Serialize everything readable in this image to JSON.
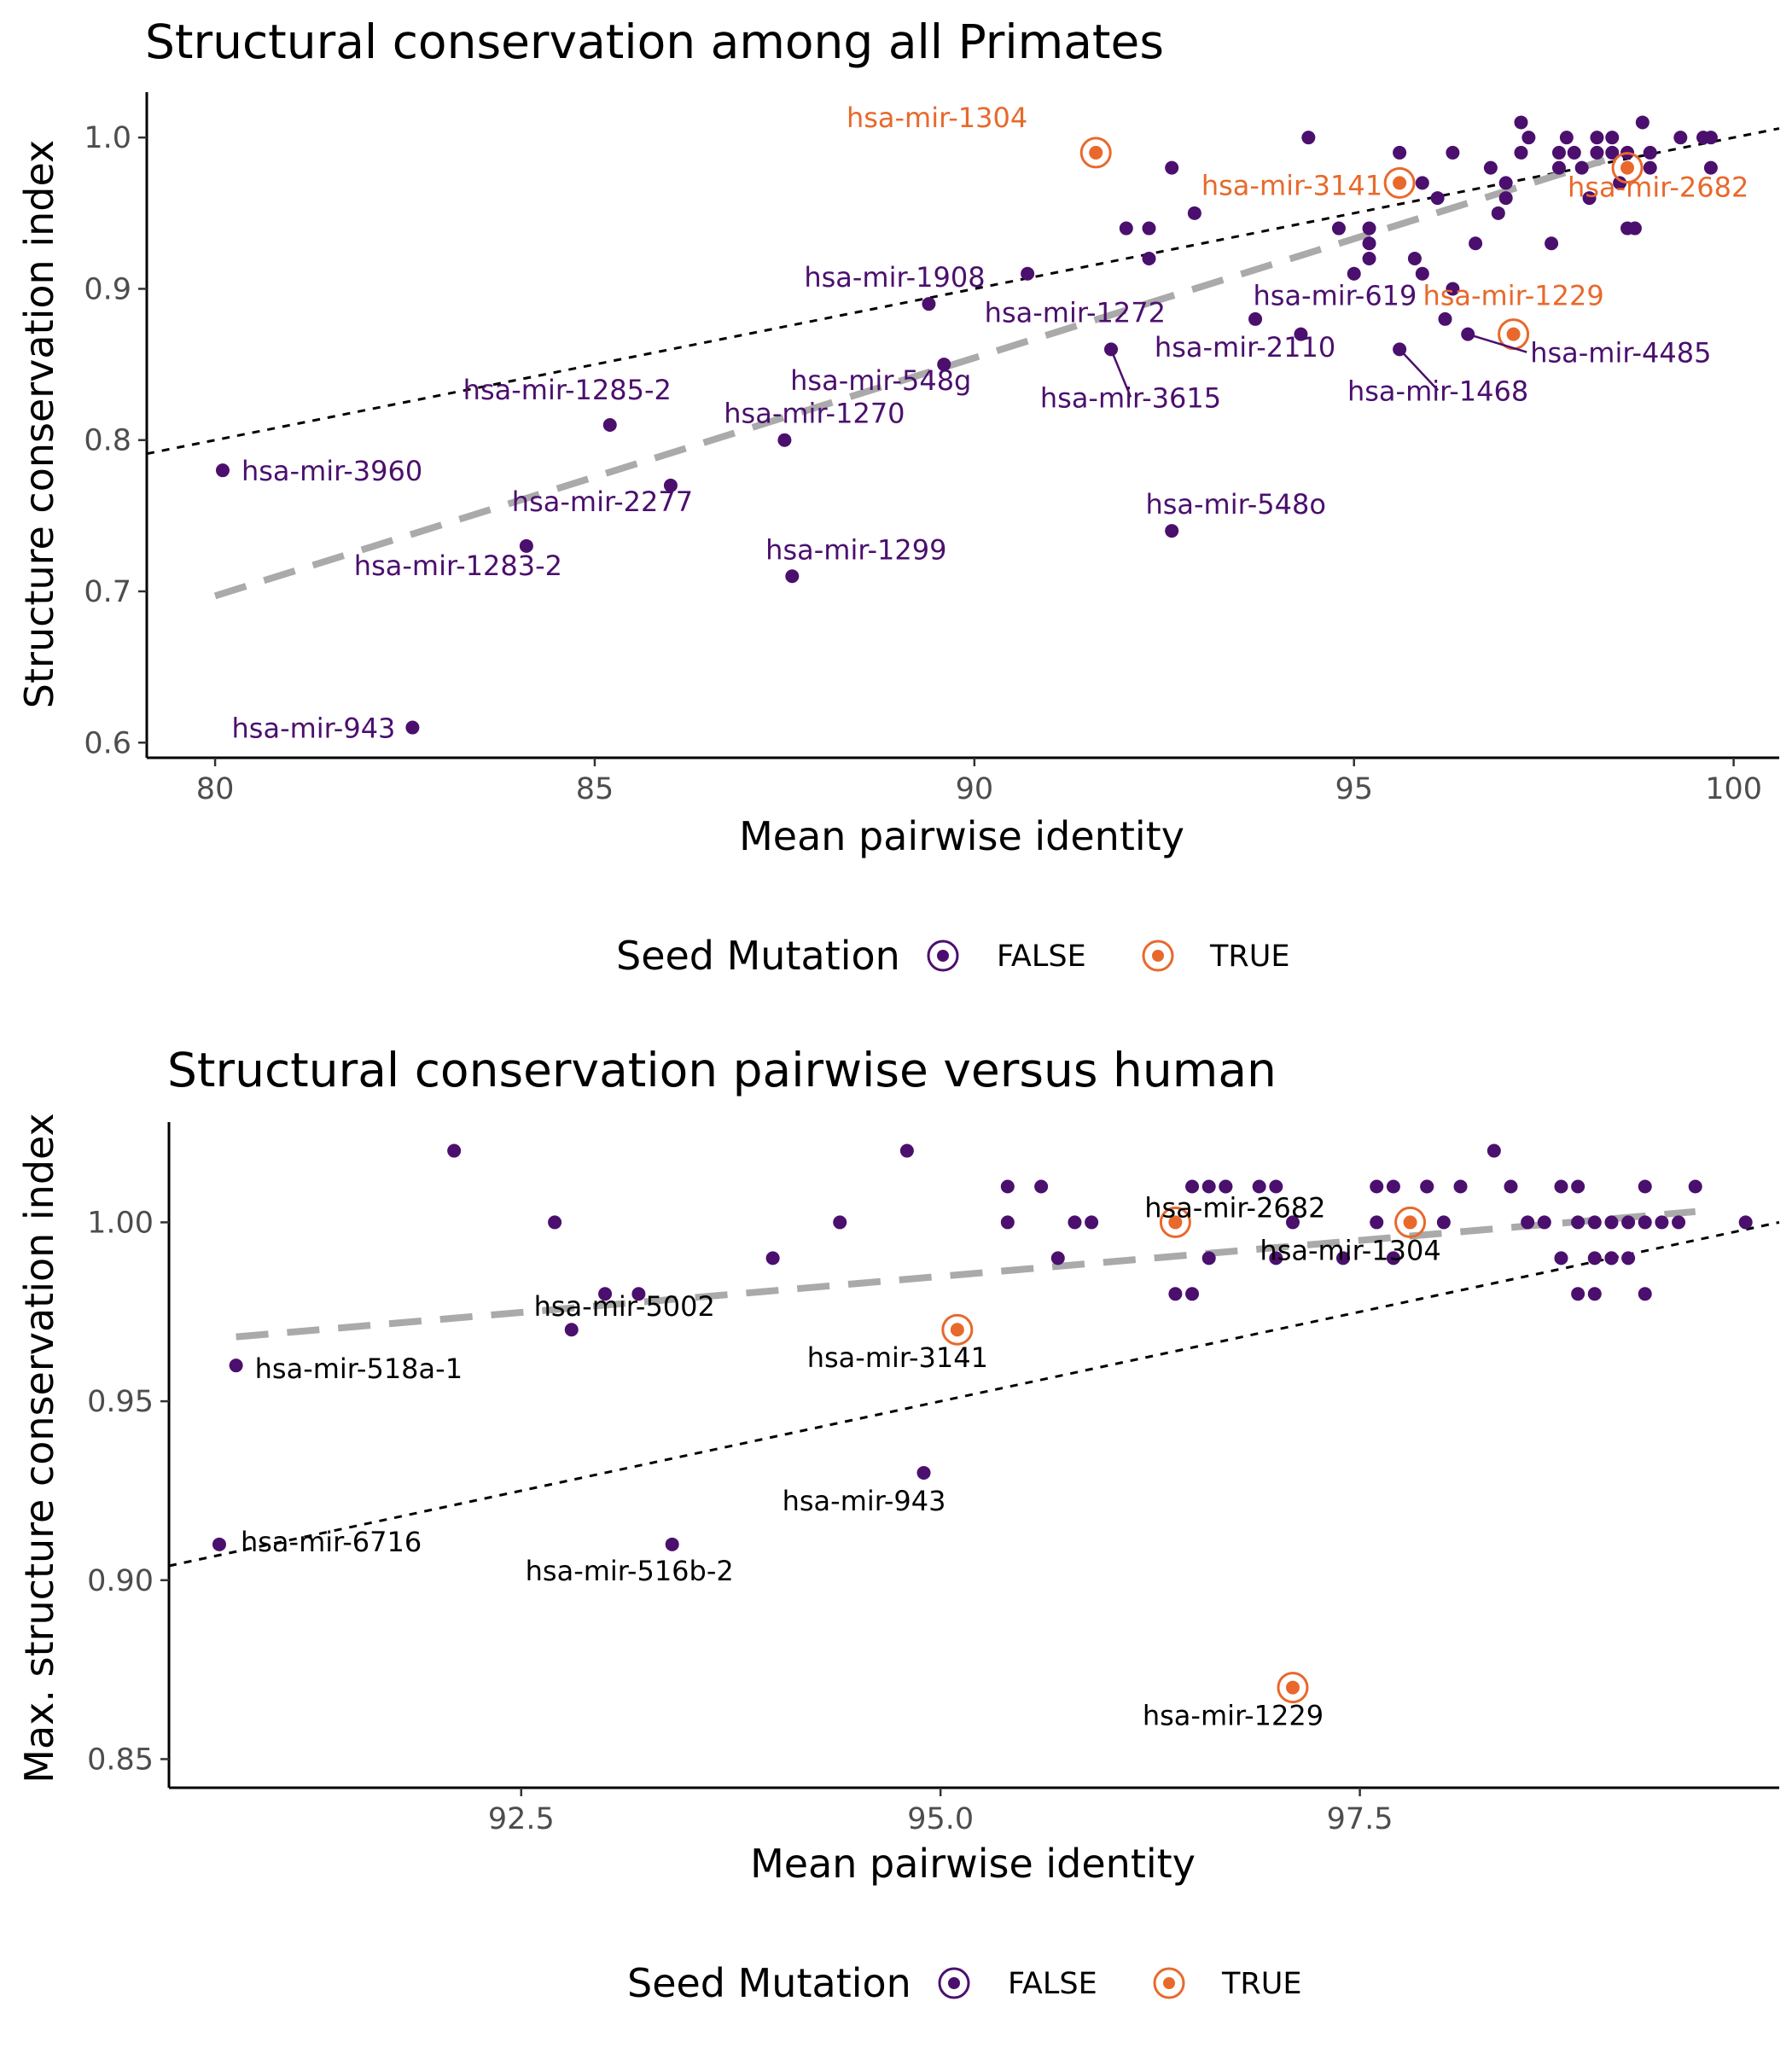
{
  "colors": {
    "false": "#4b0f6e",
    "true": "#e8692b",
    "loess": "#aaaaaa",
    "diag": "#000000",
    "axis": "#000000"
  },
  "chart_data": [
    {
      "type": "scatter",
      "title": "Structural conservation among all Primates",
      "xlabel": "Mean pairwise identity",
      "ylabel": "Structure conservation index",
      "xlim": [
        79.1,
        100.6
      ],
      "ylim": [
        0.59,
        1.03
      ],
      "xticks": [
        80,
        85,
        90,
        95,
        100
      ],
      "xtick_labels": [
        "80",
        "85",
        "90",
        "95",
        "100"
      ],
      "yticks": [
        0.6,
        0.7,
        0.8,
        0.9,
        1.0
      ],
      "ytick_labels": [
        "0.6",
        "0.7",
        "0.8",
        "0.9",
        "1.0"
      ],
      "grid": false,
      "reference_line": {
        "style": "dotted",
        "from": [
          79.1,
          0.791
        ],
        "to": [
          100.6,
          1.006
        ]
      },
      "trend_line": {
        "style": "dashed",
        "from": [
          80.0,
          0.697
        ],
        "to": [
          98.3,
          0.985
        ]
      },
      "legend": {
        "title": "Seed Mutation",
        "position": "bottom",
        "entries": [
          "FALSE",
          "TRUE"
        ]
      },
      "series": [
        {
          "name": "FALSE",
          "points": [
            [
              80.1,
              0.78
            ],
            [
              82.6,
              0.61
            ],
            [
              84.1,
              0.73
            ],
            [
              85.2,
              0.81
            ],
            [
              86.0,
              0.77
            ],
            [
              87.5,
              0.8
            ],
            [
              87.6,
              0.71
            ],
            [
              89.4,
              0.89
            ],
            [
              89.6,
              0.85
            ],
            [
              90.7,
              0.91
            ],
            [
              91.8,
              0.86
            ],
            [
              92.0,
              0.94
            ],
            [
              92.3,
              0.94
            ],
            [
              92.3,
              0.92
            ],
            [
              92.6,
              0.98
            ],
            [
              92.6,
              0.74
            ],
            [
              92.9,
              0.95
            ],
            [
              93.7,
              0.88
            ],
            [
              94.3,
              0.87
            ],
            [
              94.4,
              1.0
            ],
            [
              94.8,
              0.94
            ],
            [
              95.0,
              0.91
            ],
            [
              95.2,
              0.94
            ],
            [
              95.2,
              0.93
            ],
            [
              95.2,
              0.92
            ],
            [
              95.6,
              0.99
            ],
            [
              95.6,
              0.86
            ],
            [
              95.9,
              0.97
            ],
            [
              96.1,
              0.96
            ],
            [
              96.2,
              0.88
            ],
            [
              96.3,
              0.9
            ],
            [
              96.3,
              0.99
            ],
            [
              96.5,
              0.87
            ],
            [
              96.6,
              0.93
            ],
            [
              96.8,
              0.98
            ],
            [
              96.9,
              0.95
            ],
            [
              97.0,
              0.97
            ],
            [
              97.0,
              0.96
            ],
            [
              97.2,
              1.01
            ],
            [
              97.2,
              0.99
            ],
            [
              97.3,
              1.0
            ],
            [
              97.6,
              0.93
            ],
            [
              97.7,
              0.99
            ],
            [
              97.7,
              0.98
            ],
            [
              97.8,
              1.0
            ],
            [
              97.9,
              0.99
            ],
            [
              98.0,
              0.98
            ],
            [
              98.1,
              0.96
            ],
            [
              98.2,
              1.0
            ],
            [
              98.2,
              0.99
            ],
            [
              98.4,
              1.0
            ],
            [
              98.4,
              0.99
            ],
            [
              98.5,
              0.97
            ],
            [
              98.6,
              0.99
            ],
            [
              98.6,
              0.94
            ],
            [
              98.7,
              0.94
            ],
            [
              98.8,
              1.01
            ],
            [
              98.9,
              0.99
            ],
            [
              98.9,
              0.98
            ],
            [
              99.3,
              1.0
            ],
            [
              99.6,
              1.0
            ],
            [
              99.7,
              1.0
            ],
            [
              99.7,
              0.98
            ],
            [
              95.8,
              0.92
            ],
            [
              95.9,
              0.91
            ]
          ]
        },
        {
          "name": "TRUE",
          "points": [
            [
              91.6,
              0.99
            ],
            [
              95.6,
              0.97
            ],
            [
              97.1,
              0.87
            ],
            [
              98.6,
              0.98
            ]
          ]
        }
      ],
      "annotations": [
        {
          "text": "hsa-mir-1304",
          "color": "true",
          "at": [
            91.6,
            0.99
          ],
          "dx": -80,
          "dy": -30,
          "anchor": "end"
        },
        {
          "text": "hsa-mir-3141",
          "color": "true",
          "at": [
            95.6,
            0.97
          ],
          "dx": -20,
          "dy": 14,
          "anchor": "end"
        },
        {
          "text": "hsa-mir-2682",
          "color": "true",
          "at": [
            98.6,
            0.98
          ],
          "dx": -70,
          "dy": 34,
          "anchor": "start"
        },
        {
          "text": "hsa-mir-1229",
          "color": "true",
          "at": [
            97.1,
            0.87
          ],
          "dx": 0,
          "dy": -34,
          "anchor": "middle"
        },
        {
          "text": "hsa-mir-1908",
          "color": "false",
          "at": [
            89.4,
            0.89
          ],
          "dx": -40,
          "dy": -20,
          "anchor": "middle"
        },
        {
          "text": "hsa-mir-1272",
          "color": "false",
          "at": [
            92.0,
            0.94
          ],
          "dx": -60,
          "dy": 110,
          "anchor": "middle"
        },
        {
          "text": "hsa-mir-619",
          "color": "false",
          "at": [
            94.3,
            0.87
          ],
          "dx": 40,
          "dy": -34,
          "anchor": "middle"
        },
        {
          "text": "hsa-mir-2110",
          "color": "false",
          "at": [
            93.7,
            0.88
          ],
          "dx": -12,
          "dy": 44,
          "anchor": "middle"
        },
        {
          "text": "hsa-mir-4485",
          "color": "false",
          "at": [
            96.5,
            0.87
          ],
          "dx": 73,
          "dy": 33,
          "anchor": "start",
          "leader": true
        },
        {
          "text": "hsa-mir-3615",
          "color": "false",
          "at": [
            91.8,
            0.86
          ],
          "dx": 23,
          "dy": 68,
          "anchor": "middle",
          "leader": true
        },
        {
          "text": "hsa-mir-1468",
          "color": "false",
          "at": [
            95.6,
            0.86
          ],
          "dx": 45,
          "dy": 60,
          "anchor": "middle",
          "leader": true
        },
        {
          "text": "hsa-mir-548g",
          "color": "false",
          "at": [
            89.6,
            0.85
          ],
          "dx": -74,
          "dy": 30,
          "anchor": "middle"
        },
        {
          "text": "hsa-mir-1285-2",
          "color": "false",
          "at": [
            85.2,
            0.81
          ],
          "dx": -50,
          "dy": -30,
          "anchor": "middle"
        },
        {
          "text": "hsa-mir-1270",
          "color": "false",
          "at": [
            87.5,
            0.8
          ],
          "dx": 35,
          "dy": -20,
          "anchor": "middle"
        },
        {
          "text": "hsa-mir-3960",
          "color": "false",
          "at": [
            80.1,
            0.78
          ],
          "dx": 22,
          "dy": 12,
          "anchor": "start"
        },
        {
          "text": "hsa-mir-2277",
          "color": "false",
          "at": [
            86.0,
            0.77
          ],
          "dx": -80,
          "dy": 30,
          "anchor": "middle"
        },
        {
          "text": "hsa-mir-1283-2",
          "color": "false",
          "at": [
            84.1,
            0.73
          ],
          "dx": -80,
          "dy": 34,
          "anchor": "middle"
        },
        {
          "text": "hsa-mir-1299",
          "color": "false",
          "at": [
            87.6,
            0.71
          ],
          "dx": 75,
          "dy": -20,
          "anchor": "middle"
        },
        {
          "text": "hsa-mir-548o",
          "color": "false",
          "at": [
            92.6,
            0.74
          ],
          "dx": 75,
          "dy": -20,
          "anchor": "middle"
        },
        {
          "text": "hsa-mir-943",
          "color": "false",
          "at": [
            82.6,
            0.61
          ],
          "dx": -20,
          "dy": 12,
          "anchor": "end"
        }
      ]
    },
    {
      "type": "scatter",
      "title": "Structural conservation pairwise versus human",
      "xlabel": "Mean pairwise identity",
      "ylabel": "Max. structure conservation index",
      "xlim": [
        90.4,
        100.0
      ],
      "ylim": [
        0.842,
        1.028
      ],
      "xticks": [
        92.5,
        95.0,
        97.5
      ],
      "xtick_labels": [
        "92.5",
        "95.0",
        "97.5"
      ],
      "yticks": [
        0.85,
        0.9,
        0.95,
        1.0
      ],
      "ytick_labels": [
        "0.85",
        "0.90",
        "0.95",
        "1.00"
      ],
      "grid": false,
      "reference_line": {
        "style": "dotted",
        "from": [
          90.4,
          0.904
        ],
        "to": [
          100.0,
          1.0
        ]
      },
      "trend_line": {
        "style": "dashed",
        "from": [
          90.8,
          0.968
        ],
        "to": [
          99.5,
          1.003
        ]
      },
      "legend": {
        "title": "Seed Mutation",
        "position": "bottom",
        "entries": [
          "FALSE",
          "TRUE"
        ]
      },
      "series": [
        {
          "name": "FALSE",
          "points": [
            [
              90.7,
              0.91
            ],
            [
              90.8,
              0.96
            ],
            [
              92.1,
              1.02
            ],
            [
              92.7,
              1.0
            ],
            [
              92.8,
              0.97
            ],
            [
              93.0,
              0.98
            ],
            [
              93.2,
              0.98
            ],
            [
              93.4,
              0.91
            ],
            [
              94.0,
              0.99
            ],
            [
              94.4,
              1.0
            ],
            [
              94.8,
              1.02
            ],
            [
              94.9,
              0.93
            ],
            [
              95.4,
              1.0
            ],
            [
              95.4,
              1.01
            ],
            [
              95.6,
              1.01
            ],
            [
              95.7,
              0.99
            ],
            [
              95.8,
              1.0
            ],
            [
              95.9,
              1.0
            ],
            [
              96.4,
              0.98
            ],
            [
              96.5,
              1.01
            ],
            [
              96.5,
              0.98
            ],
            [
              96.6,
              1.01
            ],
            [
              96.6,
              0.99
            ],
            [
              96.7,
              1.01
            ],
            [
              96.7,
              1.01
            ],
            [
              96.9,
              1.01
            ],
            [
              97.0,
              1.01
            ],
            [
              97.0,
              0.99
            ],
            [
              97.1,
              1.0
            ],
            [
              97.4,
              0.99
            ],
            [
              97.6,
              1.0
            ],
            [
              97.6,
              1.01
            ],
            [
              97.7,
              1.01
            ],
            [
              97.7,
              0.99
            ],
            [
              97.9,
              1.01
            ],
            [
              97.9,
              1.01
            ],
            [
              98.0,
              1.0
            ],
            [
              98.1,
              1.01
            ],
            [
              98.3,
              1.02
            ],
            [
              98.4,
              1.01
            ],
            [
              98.5,
              1.0
            ],
            [
              98.6,
              1.0
            ],
            [
              98.7,
              1.01
            ],
            [
              98.7,
              0.99
            ],
            [
              98.8,
              1.01
            ],
            [
              98.8,
              0.98
            ],
            [
              98.8,
              1.0
            ],
            [
              98.9,
              0.99
            ],
            [
              98.9,
              1.0
            ],
            [
              98.9,
              0.98
            ],
            [
              99.0,
              0.99
            ],
            [
              99.0,
              1.0
            ],
            [
              99.0,
              0.99
            ],
            [
              99.1,
              1.0
            ],
            [
              99.1,
              0.99
            ],
            [
              99.2,
              1.01
            ],
            [
              99.2,
              0.98
            ],
            [
              99.2,
              1.0
            ],
            [
              99.3,
              1.0
            ],
            [
              99.4,
              1.0
            ],
            [
              99.5,
              1.01
            ],
            [
              99.8,
              1.0
            ]
          ]
        },
        {
          "name": "TRUE",
          "points": [
            [
              95.1,
              0.97
            ],
            [
              96.4,
              1.0
            ],
            [
              97.1,
              0.87
            ],
            [
              97.8,
              1.0
            ]
          ]
        }
      ],
      "annotations": [
        {
          "text": "hsa-mir-518a-1",
          "color": "black",
          "at": [
            90.8,
            0.96
          ],
          "dx": 22,
          "dy": 15,
          "anchor": "start"
        },
        {
          "text": "hsa-mir-6716",
          "color": "black",
          "at": [
            90.7,
            0.91
          ],
          "dx": 25,
          "dy": 8,
          "anchor": "start"
        },
        {
          "text": "hsa-mir-5002",
          "color": "black",
          "at": [
            92.8,
            0.97
          ],
          "dx": 62,
          "dy": -16,
          "anchor": "middle"
        },
        {
          "text": "hsa-mir-516b-2",
          "color": "black",
          "at": [
            93.4,
            0.91
          ],
          "dx": -50,
          "dy": 42,
          "anchor": "middle"
        },
        {
          "text": "hsa-mir-943",
          "color": "black",
          "at": [
            94.9,
            0.93
          ],
          "dx": -70,
          "dy": 44,
          "anchor": "middle"
        },
        {
          "text": "hsa-mir-3141",
          "color": "black",
          "at": [
            95.1,
            0.97
          ],
          "dx": -70,
          "dy": 44,
          "anchor": "middle"
        },
        {
          "text": "hsa-mir-2682",
          "color": "black",
          "at": [
            96.4,
            1.0
          ],
          "dx": 70,
          "dy": -6,
          "anchor": "middle"
        },
        {
          "text": "hsa-mir-1304",
          "color": "black",
          "at": [
            97.8,
            1.0
          ],
          "dx": -70,
          "dy": 44,
          "anchor": "middle"
        },
        {
          "text": "hsa-mir-1229",
          "color": "black",
          "at": [
            97.1,
            0.87
          ],
          "dx": -70,
          "dy": 44,
          "anchor": "middle"
        }
      ]
    }
  ]
}
